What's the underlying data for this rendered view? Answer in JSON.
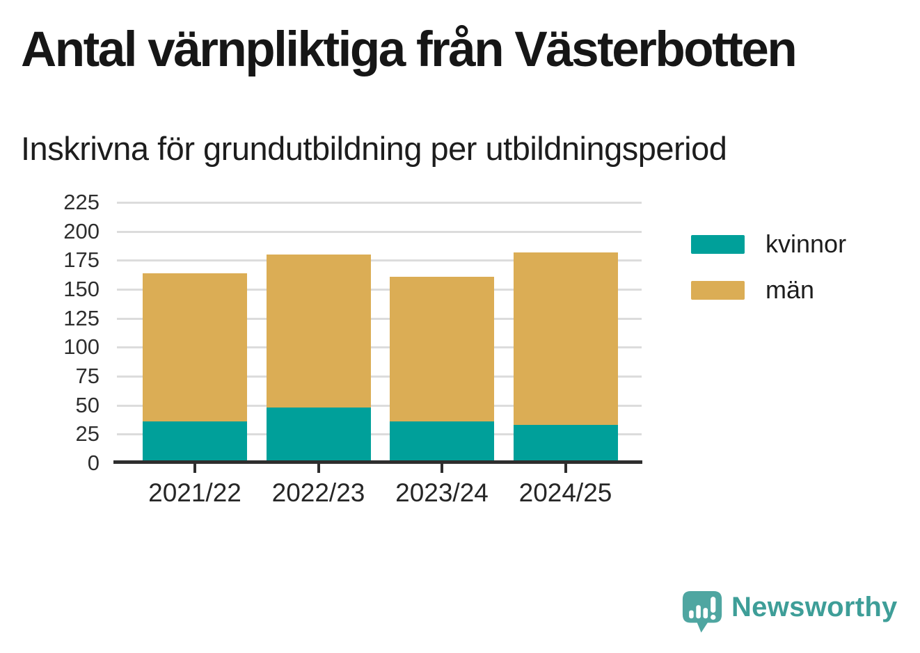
{
  "header": {
    "title": "Antal värnpliktiga från Västerbotten",
    "subtitle": "Inskrivna för grundutbildning per utbildningsperiod"
  },
  "chart_data": {
    "type": "bar",
    "stacked": true,
    "title": "Antal värnpliktiga från Västerbotten",
    "subtitle": "Inskrivna för grundutbildning per utbildningsperiod",
    "categories": [
      "2021/22",
      "2022/23",
      "2023/24",
      "2024/25"
    ],
    "series": [
      {
        "name": "kvinnor",
        "color": "#00A09A",
        "values": [
          36,
          48,
          36,
          33
        ]
      },
      {
        "name": "män",
        "color": "#DBAD55",
        "values": [
          128,
          132,
          125,
          149
        ]
      }
    ],
    "totals": [
      164,
      180,
      161,
      182
    ],
    "xlabel": "",
    "ylabel": "",
    "ylim": [
      0,
      225
    ],
    "yticks": [
      0,
      25,
      50,
      75,
      100,
      125,
      150,
      175,
      200,
      225
    ],
    "grid": true,
    "legend_position": "right"
  },
  "legend": {
    "items": [
      {
        "label": "kvinnor",
        "color": "#00A09A"
      },
      {
        "label": "män",
        "color": "#DBAD55"
      }
    ]
  },
  "brand": {
    "name": "Newsworthy"
  },
  "colors": {
    "kvinnor": "#00A09A",
    "man": "#DBAD55",
    "gridline": "#dcdcdc",
    "axis": "#2e2e2e",
    "logo_icon": "#4fa6a1",
    "logo_text": "#3e9e98",
    "title_text": "#161616"
  }
}
